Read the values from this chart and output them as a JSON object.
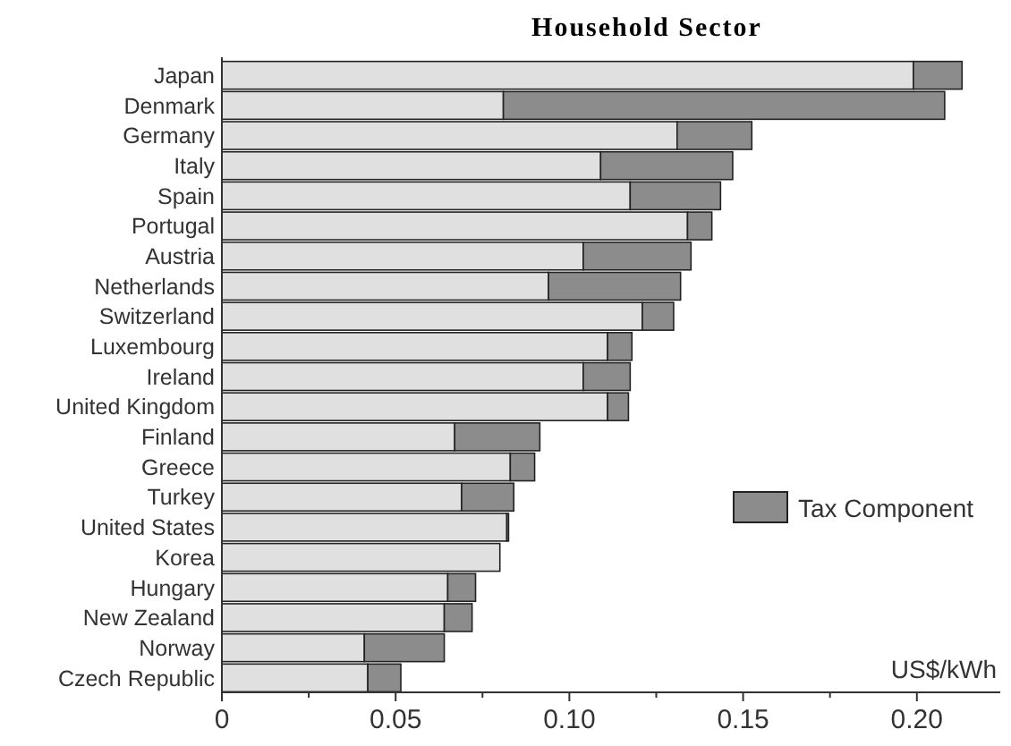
{
  "chart_data": {
    "type": "bar",
    "orientation": "horizontal",
    "stacked": true,
    "title": "Household Sector",
    "xlabel": "US$/kWh",
    "categories": [
      "Japan",
      "Denmark",
      "Germany",
      "Italy",
      "Spain",
      "Portugal",
      "Austria",
      "Netherlands",
      "Switzerland",
      "Luxembourg",
      "Ireland",
      "United Kingdom",
      "Finland",
      "Greece",
      "Turkey",
      "United States",
      "Korea",
      "Hungary",
      "New Zealand",
      "Norway",
      "Czech Republic"
    ],
    "series": [
      {
        "color": "#e0e0e0",
        "values": [
          0.199,
          0.081,
          0.131,
          0.109,
          0.1175,
          0.134,
          0.104,
          0.094,
          0.121,
          0.111,
          0.104,
          0.111,
          0.067,
          0.083,
          0.069,
          0.082,
          0.08,
          0.065,
          0.064,
          0.041,
          0.042
        ]
      },
      {
        "name": "Tax Component",
        "color": "#8c8c8c",
        "values": [
          0.014,
          0.127,
          0.0215,
          0.038,
          0.026,
          0.007,
          0.031,
          0.038,
          0.009,
          0.007,
          0.0135,
          0.006,
          0.0245,
          0.007,
          0.015,
          0.0005,
          0,
          0.008,
          0.008,
          0.023,
          0.0095
        ]
      }
    ],
    "xlim": [
      0,
      0.224
    ],
    "xticks": [
      0,
      {
        "value": 0.025,
        "label": null
      },
      {
        "value": 0.05,
        "label": "0.05"
      },
      {
        "value": 0.075,
        "label": null
      },
      {
        "value": 0.1,
        "label": "0.10"
      },
      {
        "value": 0.125,
        "label": null
      },
      {
        "value": 0.15,
        "label": "0.15"
      },
      {
        "value": 0.175,
        "label": null
      },
      {
        "value": 0.2,
        "label": "0.20"
      }
    ],
    "legend": "right",
    "grid": false
  }
}
